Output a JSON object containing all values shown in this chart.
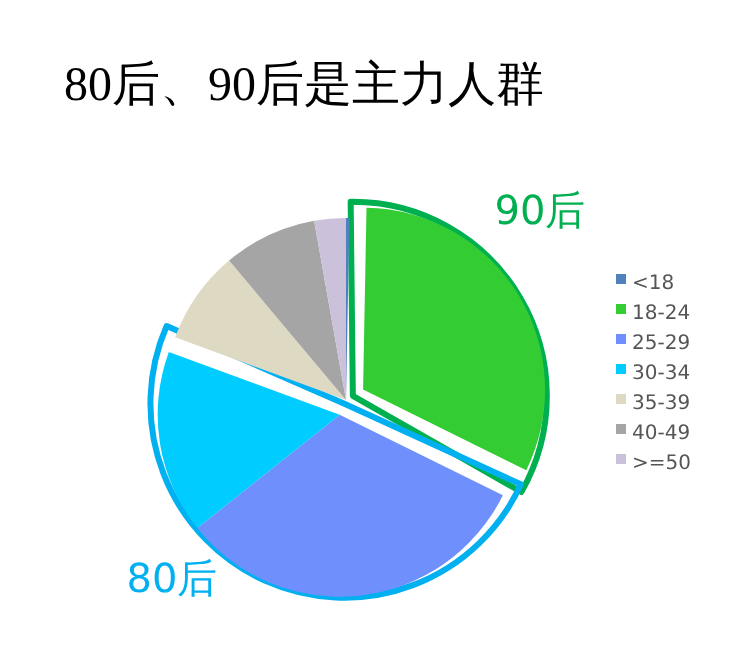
{
  "chart_data": {
    "type": "pie",
    "title": "80后、90后是主力人群",
    "categories": [
      "<18",
      "18-24",
      "25-29",
      "30-34",
      "35-39",
      "40-49",
      ">=50"
    ],
    "values": [
      0.3,
      32,
      32,
      16.3,
      8.3,
      8.3,
      2.8
    ],
    "colors": [
      "#4f81bd",
      "#33cc33",
      "#6f8ffc",
      "#00ccff",
      "#ddd9c3",
      "#a5a5a5",
      "#ccc1da"
    ],
    "legend": "right",
    "annotations": [
      "90后",
      "80后"
    ]
  }
}
